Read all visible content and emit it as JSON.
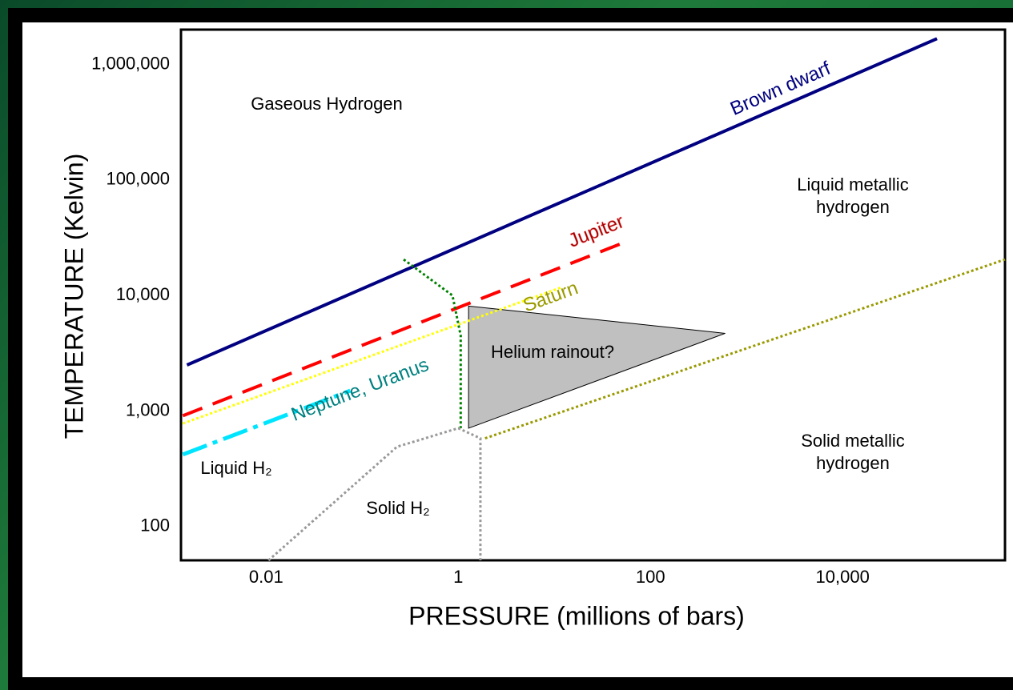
{
  "chart_data": {
    "type": "line",
    "xlabel": "PRESSURE (millions of bars)",
    "ylabel": "TEMPERATURE (Kelvin)",
    "xscale": "log",
    "yscale": "log",
    "xlim": [
      0.0013,
      490000
    ],
    "ylim": [
      51,
      2000000
    ],
    "xticks": [
      0.01,
      1,
      100,
      {
        "value": 10000,
        "label": "10,000"
      }
    ],
    "yticks": [
      100,
      {
        "value": 1000,
        "label": "1,000"
      },
      {
        "value": 10000,
        "label": "10,000"
      },
      {
        "value": 100000,
        "label": "100,000"
      },
      {
        "value": 1000000,
        "label": "1,000,000"
      }
    ],
    "series": [
      {
        "name": "Brown dwarf",
        "color": "#000080",
        "style": "solid",
        "x": [
          0.0015,
          96000
        ],
        "values": [
          2500,
          1670000
        ]
      },
      {
        "name": "Jupiter",
        "color": "#ff0000",
        "style": "dashed",
        "x": [
          0.00136,
          49
        ],
        "values": [
          910,
          28000
        ]
      },
      {
        "name": "Saturn",
        "color": "#ffff00",
        "style": "dotted",
        "x": [
          0.00136,
          11.7
        ],
        "values": [
          780,
          11700
        ]
      },
      {
        "name": "Neptune, Uranus",
        "color": "#00e5ff",
        "style": "dashdot",
        "x": [
          0.00136,
          0.075
        ],
        "values": [
          420,
          1500
        ]
      },
      {
        "color": "#008000",
        "style": "dotted",
        "x": [
          0.27,
          0.87,
          1.06,
          1.06
        ],
        "values": [
          20500,
          10000,
          4500,
          710
        ]
      },
      {
        "color": "#999999",
        "style": "dotted",
        "x": [
          0.0106,
          0.23,
          1,
          1.7,
          1.7
        ],
        "values": [
          51,
          490,
          710,
          580,
          51
        ]
      },
      {
        "color": "#999900",
        "style": "dotted",
        "x": [
          1.9,
          490000
        ],
        "values": [
          580,
          20500
        ]
      },
      {
        "color": "#c0c0c0",
        "style": "area",
        "x": [
          1.28,
          600,
          1.28
        ],
        "values": [
          8100,
          4700,
          710
        ]
      }
    ],
    "annotations": [
      "Gaseous Hydrogen",
      "Liquid metallic hydrogen",
      "Liquid H₂",
      "Solid H₂",
      "Helium rainout?",
      "Solid metallic hydrogen"
    ]
  }
}
